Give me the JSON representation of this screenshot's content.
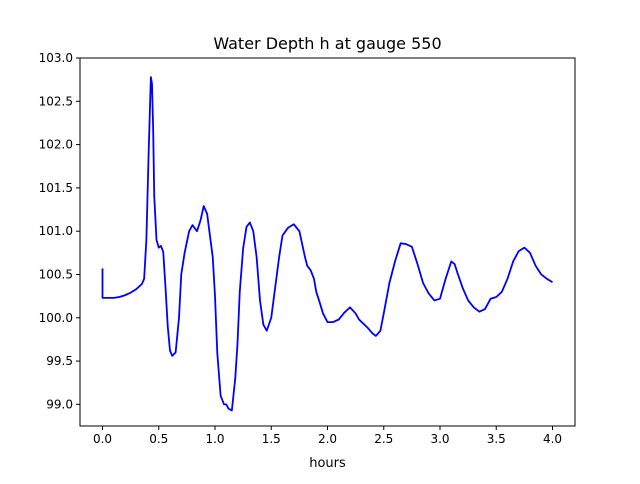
{
  "chart_data": {
    "type": "line",
    "title": "Water Depth h at gauge 550",
    "xlabel": "hours",
    "ylabel": "",
    "xlim": [
      -0.2,
      4.2
    ],
    "ylim": [
      98.75,
      103.0
    ],
    "xticks": [
      0.0,
      0.5,
      1.0,
      1.5,
      2.0,
      2.5,
      3.0,
      3.5,
      4.0
    ],
    "xtick_labels": [
      "0.0",
      "0.5",
      "1.0",
      "1.5",
      "2.0",
      "2.5",
      "3.0",
      "3.5",
      "4.0"
    ],
    "yticks": [
      99.0,
      99.5,
      100.0,
      100.5,
      101.0,
      101.5,
      102.0,
      102.5,
      103.0
    ],
    "ytick_labels": [
      "99.0",
      "99.5",
      "100.0",
      "100.5",
      "101.0",
      "101.5",
      "102.0",
      "102.5",
      "103.0"
    ],
    "grid": false,
    "series": [
      {
        "color": "#0000ff",
        "x": [
          0.0,
          0.0,
          0.05,
          0.1,
          0.15,
          0.2,
          0.25,
          0.3,
          0.35,
          0.37,
          0.39,
          0.41,
          0.43,
          0.44,
          0.45,
          0.46,
          0.48,
          0.5,
          0.52,
          0.54,
          0.56,
          0.58,
          0.6,
          0.62,
          0.65,
          0.68,
          0.7,
          0.73,
          0.77,
          0.8,
          0.84,
          0.87,
          0.9,
          0.93,
          0.96,
          0.98,
          1.0,
          1.02,
          1.05,
          1.08,
          1.1,
          1.12,
          1.15,
          1.18,
          1.2,
          1.22,
          1.25,
          1.28,
          1.31,
          1.34,
          1.37,
          1.4,
          1.43,
          1.46,
          1.5,
          1.54,
          1.57,
          1.6,
          1.65,
          1.7,
          1.75,
          1.8,
          1.82,
          1.85,
          1.88,
          1.9,
          1.93,
          1.96,
          2.0,
          2.05,
          2.1,
          2.15,
          2.2,
          2.25,
          2.28,
          2.32,
          2.36,
          2.4,
          2.43,
          2.47,
          2.5,
          2.55,
          2.6,
          2.65,
          2.7,
          2.75,
          2.8,
          2.85,
          2.9,
          2.95,
          3.0,
          3.05,
          3.1,
          3.13,
          3.16,
          3.2,
          3.25,
          3.3,
          3.35,
          3.4,
          3.45,
          3.5,
          3.55,
          3.6,
          3.65,
          3.7,
          3.75,
          3.8,
          3.85,
          3.9,
          3.95,
          4.0
        ],
        "y": [
          100.57,
          100.23,
          100.23,
          100.23,
          100.24,
          100.26,
          100.29,
          100.33,
          100.39,
          100.45,
          100.9,
          101.9,
          102.78,
          102.7,
          102.2,
          101.4,
          100.9,
          100.81,
          100.83,
          100.76,
          100.35,
          99.9,
          99.62,
          99.56,
          99.6,
          100.0,
          100.5,
          100.75,
          101.0,
          101.07,
          101.0,
          101.12,
          101.29,
          101.2,
          100.9,
          100.7,
          100.25,
          99.6,
          99.1,
          99.0,
          99.0,
          98.95,
          98.93,
          99.3,
          99.7,
          100.3,
          100.8,
          101.05,
          101.1,
          101.0,
          100.7,
          100.2,
          99.92,
          99.85,
          100.0,
          100.4,
          100.7,
          100.95,
          101.04,
          101.08,
          101.0,
          100.7,
          100.6,
          100.55,
          100.45,
          100.3,
          100.18,
          100.05,
          99.95,
          99.95,
          99.98,
          100.06,
          100.12,
          100.05,
          99.98,
          99.93,
          99.88,
          99.82,
          99.79,
          99.85,
          100.05,
          100.4,
          100.65,
          100.86,
          100.85,
          100.82,
          100.62,
          100.4,
          100.28,
          100.2,
          100.22,
          100.45,
          100.65,
          100.62,
          100.5,
          100.35,
          100.2,
          100.12,
          100.07,
          100.1,
          100.22,
          100.24,
          100.3,
          100.45,
          100.65,
          100.77,
          100.81,
          100.75,
          100.6,
          100.5,
          100.45,
          100.41
        ]
      }
    ]
  }
}
